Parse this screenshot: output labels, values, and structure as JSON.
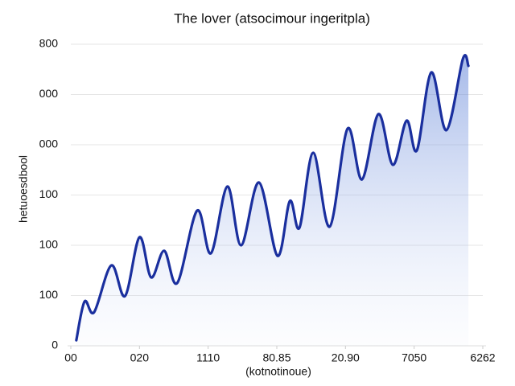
{
  "chart_data": {
    "type": "line",
    "title": "The lover (atsocimour ingeritpla)",
    "xlabel": "(kotnotinoue)",
    "ylabel": "hetuoesdbool",
    "x": [
      0.08,
      0.2,
      0.34,
      0.59,
      0.79,
      1.0,
      1.17,
      1.36,
      1.55,
      1.84,
      2.04,
      2.28,
      2.48,
      2.74,
      3.01,
      3.19,
      3.33,
      3.53,
      3.77,
      4.03,
      4.24,
      4.48,
      4.69,
      4.89,
      5.04,
      5.25,
      5.47,
      5.71,
      5.79
    ],
    "series": [
      {
        "color": "#1a2f9e",
        "values": [
          11,
          88,
          67,
          160,
          99,
          216,
          136,
          189,
          125,
          269,
          184,
          317,
          200,
          325,
          179,
          288,
          235,
          384,
          237,
          432,
          331,
          461,
          360,
          448,
          389,
          544,
          429,
          571,
          557
        ]
      }
    ],
    "xlim": [
      0,
      6
    ],
    "xticks": [
      {
        "value": 0,
        "label": "00"
      },
      {
        "value": 1,
        "label": "020"
      },
      {
        "value": 2,
        "label": "1110"
      },
      {
        "value": 3,
        "label": "80.85"
      },
      {
        "value": 4,
        "label": "20.90"
      },
      {
        "value": 5,
        "label": "7050"
      },
      {
        "value": 6,
        "label": "6262"
      }
    ],
    "ylim": [
      0,
      600
    ],
    "yticks": [
      0,
      100,
      {
        "value": 200,
        "label": "100"
      },
      {
        "value": 300,
        "label": "100"
      },
      {
        "value": 400,
        "label": "000"
      },
      {
        "value": 500,
        "label": "000"
      },
      {
        "value": 600,
        "label": "800"
      }
    ],
    "grid": true,
    "area": true
  }
}
